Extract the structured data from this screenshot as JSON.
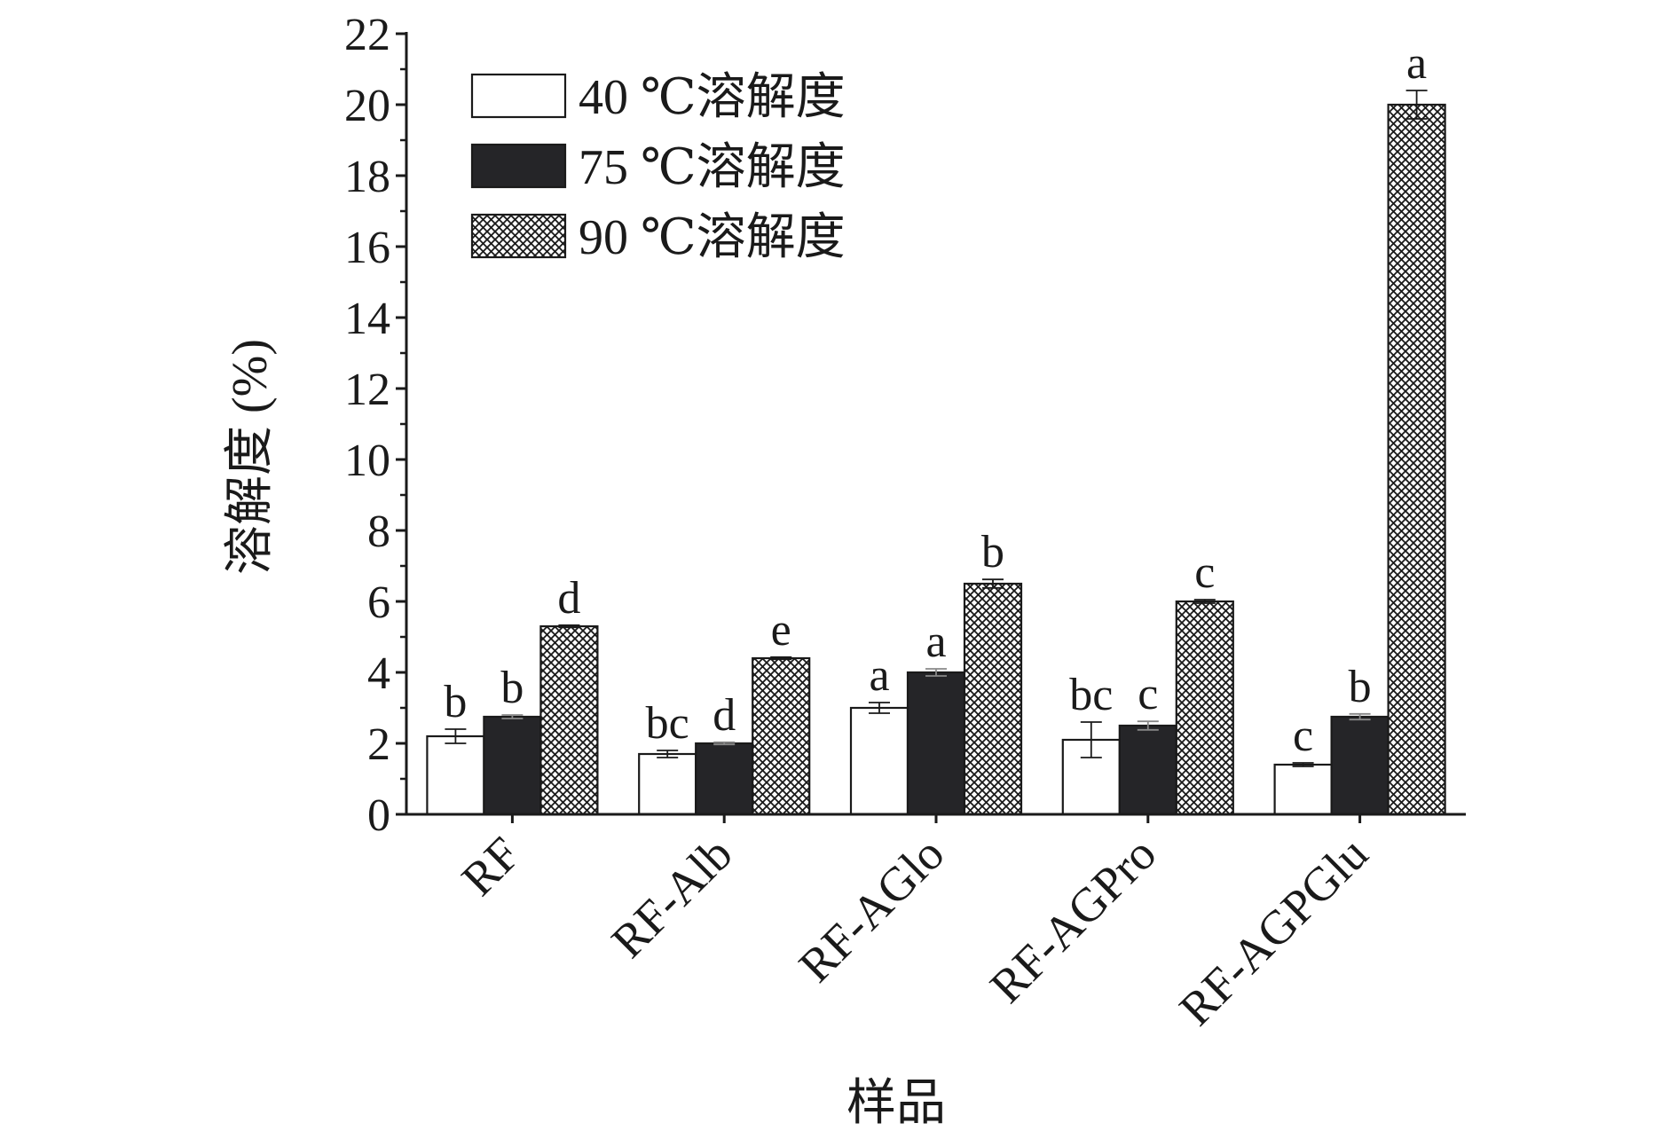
{
  "chart_data": {
    "type": "bar",
    "xlabel": "样品",
    "ylabel": "溶解度 (%)",
    "ylim": [
      0,
      22
    ],
    "y_ticks": [
      "0",
      "2",
      "4",
      "6",
      "8",
      "10",
      "12",
      "14",
      "16",
      "18",
      "20",
      "22"
    ],
    "categories": [
      "RF",
      "RF-Alb",
      "RF-AGlo",
      "RF-AGPro",
      "RF-AGPGlu"
    ],
    "legend_position": "top-left",
    "grid": false,
    "series": [
      {
        "name": "40 ℃溶解度",
        "fill": "white",
        "values": [
          2.2,
          1.7,
          3.0,
          2.1,
          1.4
        ],
        "errors": [
          0.2,
          0.1,
          0.15,
          0.5,
          0.05
        ],
        "letters": [
          "b",
          "bc",
          "a",
          "bc",
          "c"
        ]
      },
      {
        "name": "75 ℃溶解度",
        "fill": "black",
        "values": [
          2.75,
          2.0,
          4.0,
          2.5,
          2.75
        ],
        "errors": [
          0.05,
          0.03,
          0.1,
          0.12,
          0.08
        ],
        "letters": [
          "b",
          "d",
          "a",
          "c",
          "b"
        ]
      },
      {
        "name": "90 ℃溶解度",
        "fill": "crosshatch",
        "values": [
          5.3,
          4.4,
          6.5,
          6.0,
          20.0
        ],
        "errors": [
          0.03,
          0.03,
          0.12,
          0.05,
          0.4
        ],
        "letters": [
          "d",
          "e",
          "b",
          "c",
          "a"
        ]
      }
    ]
  }
}
